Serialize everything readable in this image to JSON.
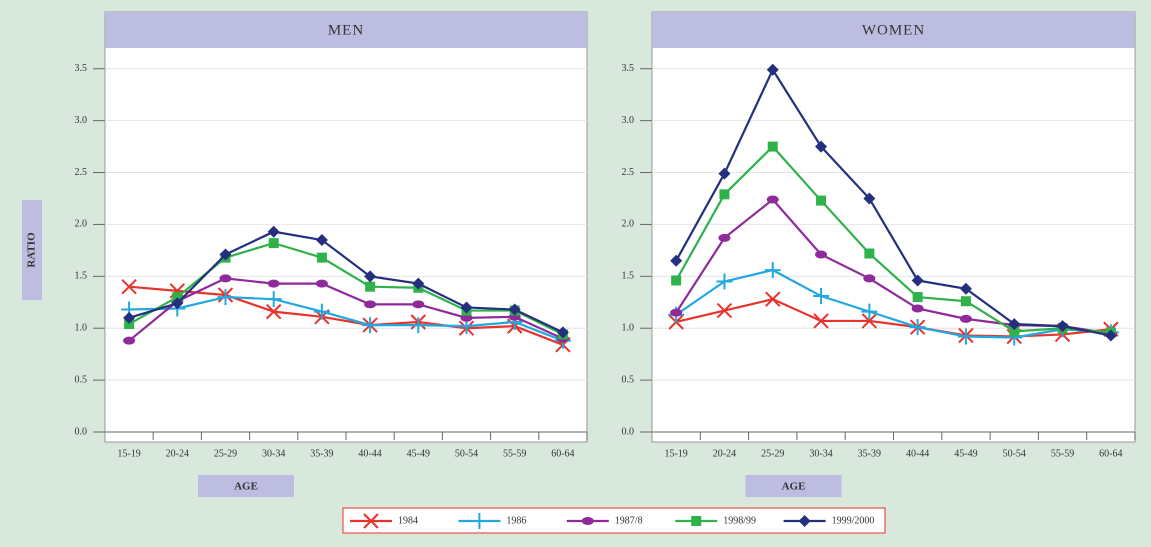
{
  "chart_data": [
    {
      "type": "line",
      "title": "MEN",
      "x_label": "AGE",
      "y_label": "RATIO",
      "categories": [
        "15-19",
        "20-24",
        "25-29",
        "30-34",
        "35-39",
        "40-44",
        "45-49",
        "50-54",
        "55-59",
        "60-64"
      ],
      "ylim": [
        0,
        3.7
      ],
      "yticks": [
        {
          "value": 0,
          "label": "0.0"
        },
        {
          "value": 0.5,
          "label": "0.5"
        },
        {
          "value": 1,
          "label": "1.0"
        },
        {
          "value": 1.5,
          "label": "1.5"
        },
        {
          "value": 2,
          "label": "2.0"
        },
        {
          "value": 2.5,
          "label": "2.5"
        },
        {
          "value": 3,
          "label": "3.0"
        },
        {
          "value": 3.5,
          "label": "3.5"
        }
      ],
      "grid": true,
      "series": [
        {
          "name": "1984",
          "color": "#e8322c",
          "marker": "x",
          "values": [
            1.4,
            1.36,
            1.32,
            1.16,
            1.11,
            1.03,
            1.06,
            1.0,
            1.02,
            0.84
          ]
        },
        {
          "name": "1986",
          "color": "#22a8e0",
          "marker": "plus",
          "values": [
            1.18,
            1.19,
            1.3,
            1.28,
            1.16,
            1.03,
            1.03,
            1.02,
            1.06,
            0.88
          ]
        },
        {
          "name": "1987/8",
          "color": "#8e2a9a",
          "marker": "ellipse",
          "values": [
            0.88,
            1.26,
            1.48,
            1.43,
            1.43,
            1.23,
            1.23,
            1.1,
            1.11,
            0.9
          ]
        },
        {
          "name": "1998/99",
          "color": "#2fb24a",
          "marker": "square",
          "values": [
            1.04,
            1.3,
            1.68,
            1.82,
            1.68,
            1.4,
            1.39,
            1.17,
            1.17,
            0.94
          ]
        },
        {
          "name": "1999/2000",
          "color": "#24307e",
          "marker": "diamond",
          "values": [
            1.1,
            1.24,
            1.71,
            1.93,
            1.85,
            1.5,
            1.43,
            1.2,
            1.18,
            0.96
          ]
        }
      ]
    },
    {
      "type": "line",
      "title": "WOMEN",
      "x_label": "AGE",
      "categories": [
        "15-19",
        "20-24",
        "25-29",
        "30-34",
        "35-39",
        "40-44",
        "45-49",
        "50-54",
        "55-59",
        "60-64"
      ],
      "ylim": [
        0,
        3.7
      ],
      "yticks": [
        {
          "value": 0,
          "label": "0.0"
        },
        {
          "value": 0.5,
          "label": "0.5"
        },
        {
          "value": 1,
          "label": "1.0"
        },
        {
          "value": 1.5,
          "label": "1.5"
        },
        {
          "value": 2,
          "label": "2.0"
        },
        {
          "value": 2.5,
          "label": "2.5"
        },
        {
          "value": 3,
          "label": "3.0"
        },
        {
          "value": 3.5,
          "label": "3.5"
        }
      ],
      "grid": true,
      "series": [
        {
          "color": "#e8322c",
          "marker": "x",
          "values": [
            1.06,
            1.17,
            1.28,
            1.07,
            1.07,
            1.01,
            0.93,
            0.92,
            0.94,
            0.99
          ]
        },
        {
          "color": "#22a8e0",
          "marker": "plus",
          "values": [
            1.13,
            1.45,
            1.56,
            1.31,
            1.16,
            1.01,
            0.92,
            0.91,
            0.99,
            0.96
          ]
        },
        {
          "color": "#8e2a9a",
          "marker": "ellipse",
          "values": [
            1.15,
            1.87,
            2.24,
            1.71,
            1.48,
            1.19,
            1.09,
            1.03,
            1.02,
            0.95
          ]
        },
        {
          "color": "#2fb24a",
          "marker": "square",
          "values": [
            1.46,
            2.29,
            2.75,
            2.23,
            1.72,
            1.3,
            1.26,
            0.97,
            1.0,
            0.96
          ]
        },
        {
          "color": "#24307e",
          "marker": "diamond",
          "values": [
            1.65,
            2.49,
            3.49,
            2.75,
            2.25,
            1.46,
            1.38,
            1.04,
            1.02,
            0.93
          ]
        }
      ]
    }
  ]
}
